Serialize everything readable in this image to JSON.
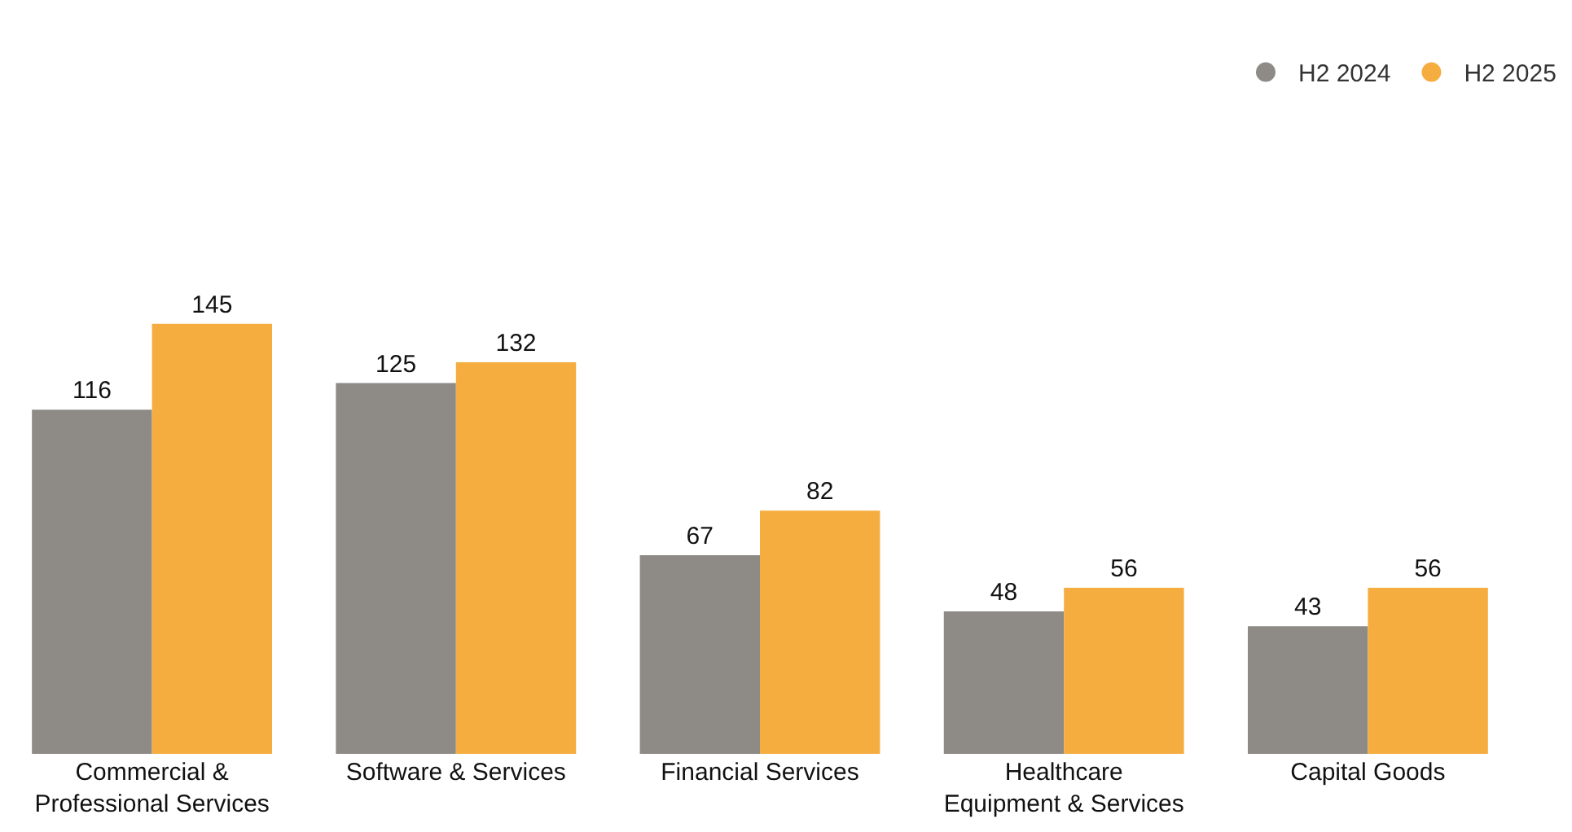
{
  "chart_data": {
    "type": "bar",
    "categories": [
      "Commercial & Professional Services",
      "Software & Services",
      "Financial Services",
      "Healthcare Equipment & Services",
      "Capital Goods"
    ],
    "series": [
      {
        "name": "H2 2024",
        "color": "#8e8a85",
        "values": [
          116,
          125,
          67,
          48,
          43
        ]
      },
      {
        "name": "H2 2025",
        "color": "#f6ad3f",
        "values": [
          145,
          132,
          82,
          56,
          56
        ]
      }
    ],
    "data_labels": true,
    "legend": "top right"
  }
}
